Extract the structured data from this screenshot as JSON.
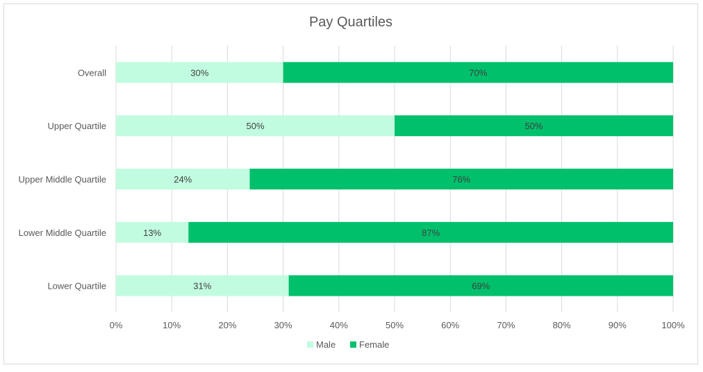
{
  "chart_data": {
    "type": "bar",
    "orientation": "horizontal",
    "stacked": "percent",
    "title": "Pay Quartiles",
    "categories": [
      "Overall",
      "Upper Quartile",
      "Upper Middle Quartile",
      "Lower Middle Quartile",
      "Lower Quartile"
    ],
    "series": [
      {
        "name": "Male",
        "color": "#c2fce0",
        "values": [
          30,
          50,
          24,
          13,
          31
        ],
        "labels": [
          "30%",
          "50%",
          "24%",
          "13%",
          "31%"
        ]
      },
      {
        "name": "Female",
        "color": "#00c06c",
        "values": [
          70,
          50,
          76,
          87,
          69
        ],
        "labels": [
          "70%",
          "50%",
          "76%",
          "87%",
          "69%"
        ]
      }
    ],
    "x_ticks": [
      "0%",
      "10%",
      "20%",
      "30%",
      "40%",
      "50%",
      "60%",
      "70%",
      "80%",
      "90%",
      "100%"
    ],
    "xlim": [
      0,
      100
    ],
    "grid": "vertical",
    "legend": "bottom",
    "gridline_color": "#d9d9d9",
    "text_color": "#595959",
    "label_color": "#404040"
  }
}
